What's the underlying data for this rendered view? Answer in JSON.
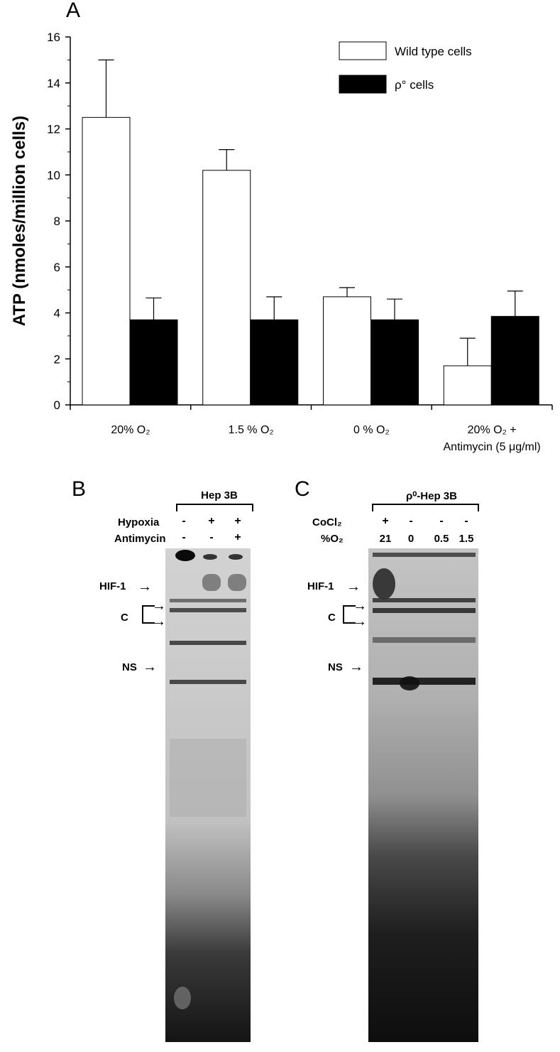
{
  "panel_a": {
    "letter": "A",
    "legend": [
      {
        "label": "Wild type cells",
        "color": "#ffffff"
      },
      {
        "label": "ρ°  cells",
        "color": "#000000"
      }
    ]
  },
  "chart_data": {
    "type": "bar",
    "title": "",
    "xlabel": "",
    "ylabel": "ATP (nmoles/million cells)",
    "ylim": [
      0,
      16
    ],
    "yticks": [
      0,
      2,
      4,
      6,
      8,
      10,
      12,
      14,
      16
    ],
    "categories": [
      "20% O₂",
      "1.5 % O₂",
      "0 % O₂",
      "20% O₂ + Antimycin (5 μg/ml)"
    ],
    "category_lines": [
      [
        "20% O₂"
      ],
      [
        "1.5 % O₂"
      ],
      [
        "0 % O₂"
      ],
      [
        "20% O₂ +",
        "Antimycin (5 μg/ml)"
      ]
    ],
    "series": [
      {
        "name": "Wild type cells",
        "color": "#ffffff",
        "values": [
          12.5,
          10.2,
          4.7,
          1.7
        ],
        "errors": [
          2.5,
          0.9,
          0.4,
          1.2
        ]
      },
      {
        "name": "ρ° cells",
        "color": "#000000",
        "values": [
          3.7,
          3.7,
          3.7,
          3.85
        ],
        "errors": [
          0.95,
          1.0,
          0.9,
          1.1
        ]
      }
    ],
    "grid": false,
    "legend_position": "top-right"
  },
  "panel_b": {
    "letter": "B",
    "group_label": "Hep 3B",
    "row_labels": [
      "Hypoxia",
      "Antimycin"
    ],
    "rows": [
      [
        "-",
        "+",
        "+"
      ],
      [
        "-",
        "-",
        "+"
      ]
    ],
    "bands": [
      "HIF-1",
      "C",
      "NS"
    ]
  },
  "panel_c": {
    "letter": "C",
    "group_label": "ρ⁰-Hep 3B",
    "row_labels": [
      "CoCl₂",
      "%O₂"
    ],
    "rows": [
      [
        "+",
        "-",
        "-",
        "-"
      ],
      [
        "21",
        "0",
        "0.5",
        "1.5"
      ]
    ],
    "bands": [
      "HIF-1",
      "C",
      "NS"
    ]
  }
}
